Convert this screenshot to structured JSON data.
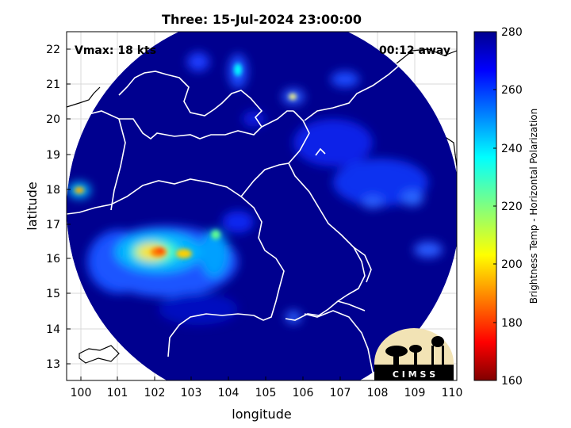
{
  "title": "Three: 15-Jul-2024 23:00:00",
  "vmax_label": "Vmax: 18 kts",
  "time_label": "00:12 away",
  "xlabel": "longitude",
  "ylabel": "latitude",
  "x_ticks": [
    "100",
    "101",
    "102",
    "103",
    "104",
    "105",
    "106",
    "107",
    "108",
    "109",
    "110"
  ],
  "y_ticks": [
    "22",
    "21",
    "20",
    "19",
    "18",
    "17",
    "16",
    "15",
    "14",
    "13"
  ],
  "xlim": [
    99.6,
    110.1
  ],
  "ylim": [
    12.5,
    22.5
  ],
  "colorbar": {
    "label": "Brightness Temp - Horizontal Polarization",
    "ticks": [
      "280",
      "260",
      "240",
      "220",
      "200",
      "180",
      "160"
    ],
    "range": [
      160,
      280
    ]
  },
  "logo_text": "C I M S S",
  "colors": {
    "background_ocean": "#00008f",
    "coast": "#ffffff",
    "outside_coast": "#000000"
  }
}
